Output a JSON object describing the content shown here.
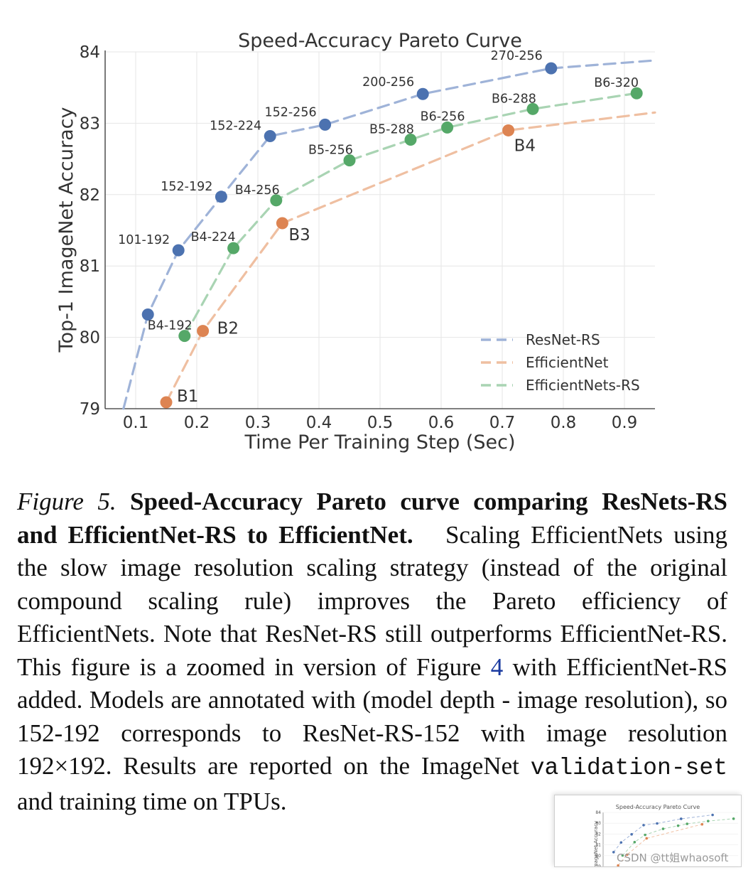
{
  "chart_data": {
    "type": "line",
    "title": "Speed-Accuracy Pareto Curve",
    "xlabel": "Time Per Training Step (Sec)",
    "ylabel": "Top-1 ImageNet Accuracy",
    "xlim": [
      0.05,
      0.95
    ],
    "ylim": [
      79,
      84
    ],
    "xticks": [
      "0.1",
      "0.2",
      "0.3",
      "0.4",
      "0.5",
      "0.6",
      "0.7",
      "0.8",
      "0.9"
    ],
    "yticks": [
      "79",
      "80",
      "81",
      "82",
      "83",
      "84"
    ],
    "grid": true,
    "legend_position": "bottom-right",
    "series": [
      {
        "name": "ResNet-RS",
        "color": "#4c72b0",
        "line_color": "#9fb3d8",
        "points": [
          {
            "x": 0.12,
            "y": 80.32,
            "label": ""
          },
          {
            "x": 0.17,
            "y": 81.22,
            "label": "101-192"
          },
          {
            "x": 0.24,
            "y": 81.97,
            "label": "152-192"
          },
          {
            "x": 0.32,
            "y": 82.82,
            "label": "152-224"
          },
          {
            "x": 0.41,
            "y": 82.98,
            "label": "152-256"
          },
          {
            "x": 0.57,
            "y": 83.41,
            "label": "200-256"
          },
          {
            "x": 0.78,
            "y": 83.77,
            "label": "270-256"
          }
        ],
        "curve_extension": [
          {
            "x": 0.08,
            "y": 79.0
          },
          {
            "x": 0.95,
            "y": 83.88
          }
        ]
      },
      {
        "name": "EfficientNet",
        "color": "#dd8452",
        "line_color": "#efbfa1",
        "points": [
          {
            "x": 0.15,
            "y": 79.09,
            "label": "B1"
          },
          {
            "x": 0.21,
            "y": 80.09,
            "label": "B2"
          },
          {
            "x": 0.34,
            "y": 81.6,
            "label": "B3"
          },
          {
            "x": 0.71,
            "y": 82.9,
            "label": "B4"
          }
        ],
        "curve_extension": [
          {
            "x": 0.95,
            "y": 83.15
          }
        ]
      },
      {
        "name": "EfficientNets-RS",
        "color": "#55a868",
        "line_color": "#a9d4b3",
        "points": [
          {
            "x": 0.18,
            "y": 80.02,
            "label": "B4-192"
          },
          {
            "x": 0.26,
            "y": 81.25,
            "label": "B4-224"
          },
          {
            "x": 0.33,
            "y": 81.92,
            "label": "B4-256"
          },
          {
            "x": 0.45,
            "y": 82.48,
            "label": "B5-256"
          },
          {
            "x": 0.55,
            "y": 82.77,
            "label": "B5-288"
          },
          {
            "x": 0.61,
            "y": 82.94,
            "label": "B6-256"
          },
          {
            "x": 0.75,
            "y": 83.2,
            "label": "B6-288"
          },
          {
            "x": 0.92,
            "y": 83.42,
            "label": "B6-320"
          }
        ]
      }
    ]
  },
  "caption": {
    "figure_label": "Figure 5.",
    "bold_title": "Speed-Accuracy Pareto curve comparing ResNets-RS and EfficientNet-RS to EfficientNet.",
    "body_1": "Scaling EfficientNets using the slow image resolution scaling strategy (instead of the original compound scaling rule) improves the Pareto efficiency of EfficientNets. Note that ResNet-RS still outperforms EfficientNet-RS. This figure is a zoomed in version of Figure",
    "figure_ref": "4",
    "body_2": "with EfficientNet-RS added. Models are annotated with (model depth - image resolution), so 152-192 corresponds to ResNet-RS-152 with image resolution 192×192. Results are reported on the ImageNet",
    "code_term": "validation-set",
    "body_3": "and training time",
    "body_4": "on TPUs."
  },
  "thumbnail": {
    "title": "Speed-Accuracy Pareto Curve",
    "ylabel": "ImageNet Accuracy"
  },
  "watermark": "CSDN @tt姐whaosoft"
}
